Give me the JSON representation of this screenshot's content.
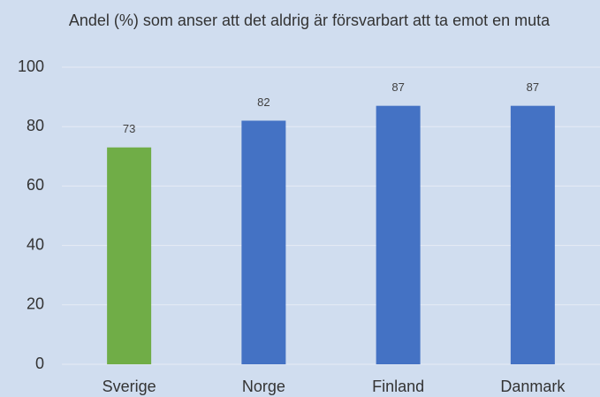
{
  "chart_data": {
    "type": "bar",
    "title": "Andel (%) som anser att det aldrig är försvarbart att ta emot en muta",
    "categories": [
      "Sverige",
      "Norge",
      "Finland",
      "Danmark"
    ],
    "values": [
      73,
      82,
      87,
      87
    ],
    "colors": [
      "#70ad47",
      "#4472c4",
      "#4472c4",
      "#4472c4"
    ],
    "ylim": [
      0,
      100
    ],
    "yticks": [
      0,
      20,
      40,
      60,
      80,
      100
    ],
    "grid": true
  }
}
